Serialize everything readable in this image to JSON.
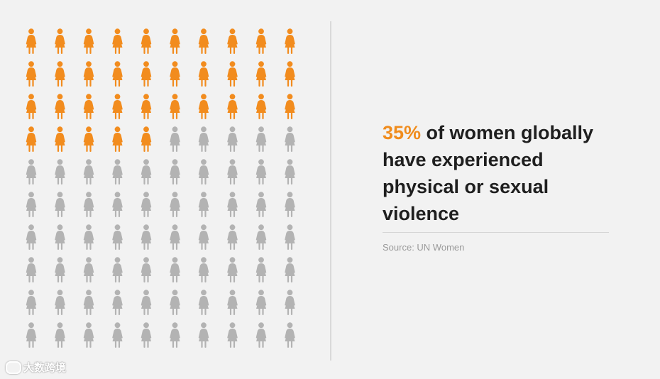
{
  "chart_data": {
    "type": "pictogram",
    "rows": 10,
    "cols": 10,
    "total_icons": 100,
    "highlighted_icons": 35,
    "highlight_color": "#f28c1e",
    "base_color": "#b3b3b3",
    "icon": "woman-figure-icon",
    "value_percent": 35,
    "pct_label": "35%",
    "statement": " of women globally have experienced physical or sexual violence",
    "source": "Source: UN Women"
  },
  "watermark": {
    "text": "大数跨境"
  }
}
